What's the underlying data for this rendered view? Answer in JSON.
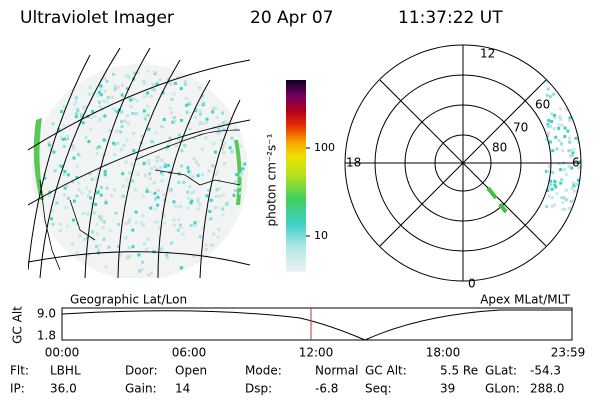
{
  "header": {
    "title": "Ultraviolet Imager",
    "date": "20 Apr 07",
    "time": "11:37:22 UT"
  },
  "colorbar": {
    "label": "photon cm⁻²s⁻¹",
    "ticks": [
      "100",
      "10"
    ]
  },
  "polar": {
    "mlt_labels": [
      "12",
      "18",
      "6",
      "0"
    ],
    "lat_labels": [
      "60",
      "70",
      "80"
    ]
  },
  "map_labels": {
    "left": "Geographic Lat/Lon",
    "right": "Apex MLat/MLT"
  },
  "timeline": {
    "y_label": "GC Alt",
    "yticks": [
      "9.0",
      "1.8"
    ],
    "xticks": [
      "00:00",
      "06:00",
      "12:00",
      "18:00",
      "23:59"
    ]
  },
  "footer": {
    "rows": [
      [
        {
          "label": "Flt:",
          "value": "LBHL"
        },
        {
          "label": "Door:",
          "value": "Open"
        },
        {
          "label": "Mode:",
          "value": "Normal"
        },
        {
          "label": "GC Alt:",
          "value": "5.5 Re"
        },
        {
          "label": "GLat:",
          "value": "-54.3"
        }
      ],
      [
        {
          "label": "IP:",
          "value": "36.0"
        },
        {
          "label": "Gain:",
          "value": "14"
        },
        {
          "label": "Dsp:",
          "value": "-6.8"
        },
        {
          "label": "Seq:",
          "value": "39"
        },
        {
          "label": "GLon:",
          "value": "288.0"
        }
      ]
    ]
  }
}
